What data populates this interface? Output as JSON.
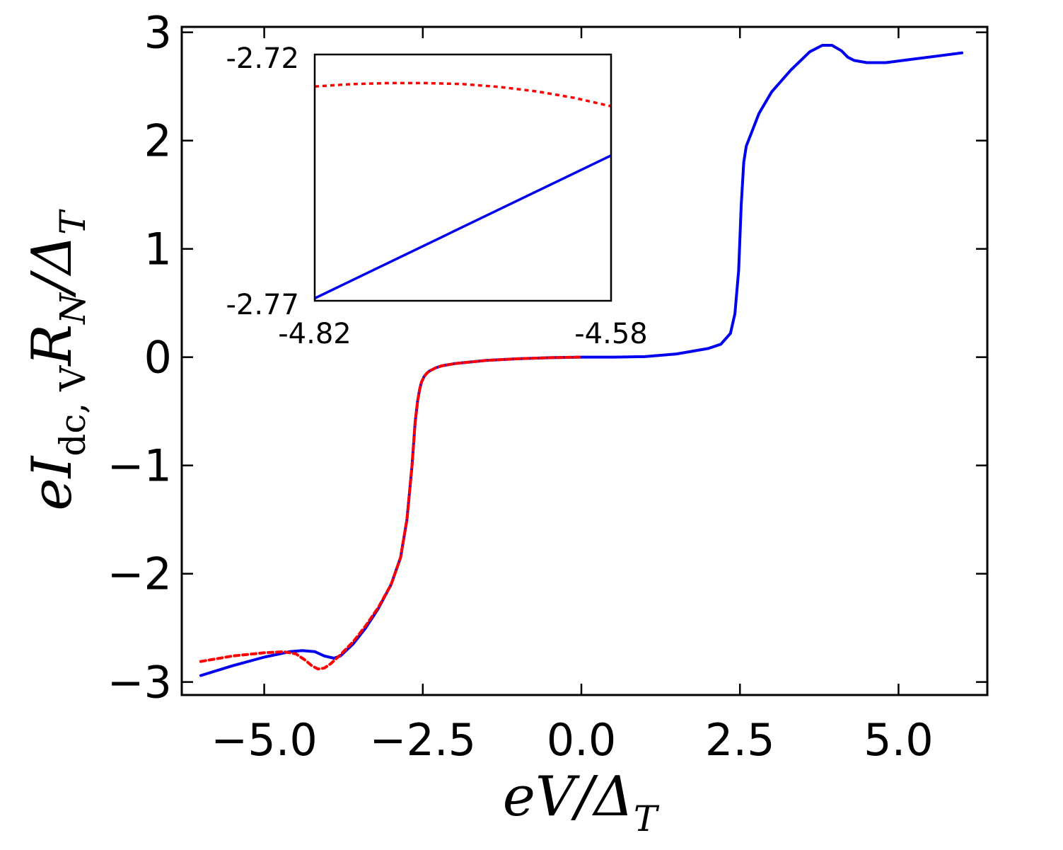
{
  "chart_data": {
    "type": "line",
    "title": "",
    "xlabel": {
      "parts": [
        "eV/Δ",
        "T"
      ],
      "text": "eV/Δ_T"
    },
    "ylabel": {
      "parts": [
        "eI",
        "dc, V",
        "R",
        "N",
        "/Δ",
        "T"
      ],
      "text": "eI_{dc,V} R_N/Δ_T"
    },
    "xlim": [
      -6.3,
      6.4
    ],
    "ylim": [
      -3.12,
      3.05
    ],
    "xticks": [
      -5.0,
      -2.5,
      0.0,
      2.5,
      5.0
    ],
    "xtick_labels": [
      "−5.0",
      "−2.5",
      "0.0",
      "2.5",
      "5.0"
    ],
    "yticks": [
      -3,
      -2,
      -1,
      0,
      1,
      2,
      3
    ],
    "ytick_labels": [
      "−3",
      "−2",
      "−1",
      "0",
      "1",
      "2",
      "3"
    ],
    "series": [
      {
        "name": "solid",
        "color": "#0000ee",
        "dash": "solid",
        "x": [
          -6.0,
          -5.5,
          -5.0,
          -4.6,
          -4.4,
          -4.2,
          -4.05,
          -3.9,
          -3.8,
          -3.6,
          -3.4,
          -3.2,
          -3.0,
          -2.85,
          -2.75,
          -2.67,
          -2.62,
          -2.58,
          -2.55,
          -2.52,
          -2.48,
          -2.44,
          -2.4,
          -2.3,
          -2.2,
          -2.0,
          -1.5,
          -1.0,
          -0.5,
          0.0,
          0.5,
          1.0,
          1.5,
          2.0,
          2.2,
          2.35,
          2.42,
          2.48,
          2.52,
          2.56,
          2.6,
          2.7,
          2.8,
          3.0,
          3.3,
          3.6,
          3.8,
          3.95,
          4.1,
          4.2,
          4.3,
          4.5,
          4.8,
          5.2,
          5.6,
          6.0
        ],
        "y": [
          -2.94,
          -2.85,
          -2.77,
          -2.72,
          -2.71,
          -2.72,
          -2.76,
          -2.78,
          -2.76,
          -2.65,
          -2.5,
          -2.32,
          -2.1,
          -1.85,
          -1.5,
          -1.0,
          -0.6,
          -0.4,
          -0.3,
          -0.23,
          -0.18,
          -0.15,
          -0.13,
          -0.1,
          -0.08,
          -0.06,
          -0.03,
          -0.015,
          -0.005,
          0.0,
          0.0,
          0.005,
          0.03,
          0.08,
          0.12,
          0.22,
          0.4,
          0.8,
          1.4,
          1.8,
          1.95,
          2.1,
          2.25,
          2.45,
          2.65,
          2.82,
          2.88,
          2.88,
          2.83,
          2.77,
          2.74,
          2.72,
          2.72,
          2.75,
          2.78,
          2.81
        ]
      },
      {
        "name": "dashed",
        "color": "#ff0000",
        "dash": "dotted",
        "x": [
          -6.0,
          -5.5,
          -5.0,
          -4.7,
          -4.5,
          -4.35,
          -4.25,
          -4.15,
          -4.05,
          -3.95,
          -3.8,
          -3.6,
          -3.4,
          -3.2,
          -3.0,
          -2.85,
          -2.75,
          -2.67,
          -2.62,
          -2.58,
          -2.55,
          -2.52,
          -2.48,
          -2.44,
          -2.4,
          -2.3,
          -2.2,
          -2.0,
          -1.5,
          -1.0,
          -0.5,
          0.0
        ],
        "y": [
          -2.81,
          -2.76,
          -2.73,
          -2.72,
          -2.74,
          -2.8,
          -2.85,
          -2.88,
          -2.87,
          -2.83,
          -2.75,
          -2.63,
          -2.48,
          -2.31,
          -2.1,
          -1.85,
          -1.5,
          -1.0,
          -0.6,
          -0.4,
          -0.3,
          -0.23,
          -0.18,
          -0.15,
          -0.13,
          -0.1,
          -0.08,
          -0.06,
          -0.03,
          -0.015,
          -0.005,
          0.0
        ]
      }
    ],
    "inset": {
      "xlim": [
        -4.82,
        -4.58
      ],
      "ylim": [
        -2.77,
        -2.72
      ],
      "xtick_labels": [
        "-4.82",
        "-4.58"
      ],
      "ytick_labels": [
        "-2.72",
        "-2.77"
      ],
      "series": [
        {
          "name": "solid",
          "color": "#0000ee",
          "dash": "solid",
          "x": [
            -4.82,
            -4.58
          ],
          "y": [
            -2.7695,
            -2.7405
          ]
        },
        {
          "name": "dashed",
          "color": "#ff0000",
          "dash": "dotted",
          "x": [
            -4.82,
            -4.79,
            -4.76,
            -4.73,
            -4.7,
            -4.67,
            -4.64,
            -4.61,
            -4.58
          ],
          "y": [
            -2.7265,
            -2.726,
            -2.7258,
            -2.7258,
            -2.726,
            -2.7266,
            -2.7275,
            -2.7288,
            -2.7305
          ]
        }
      ]
    }
  }
}
